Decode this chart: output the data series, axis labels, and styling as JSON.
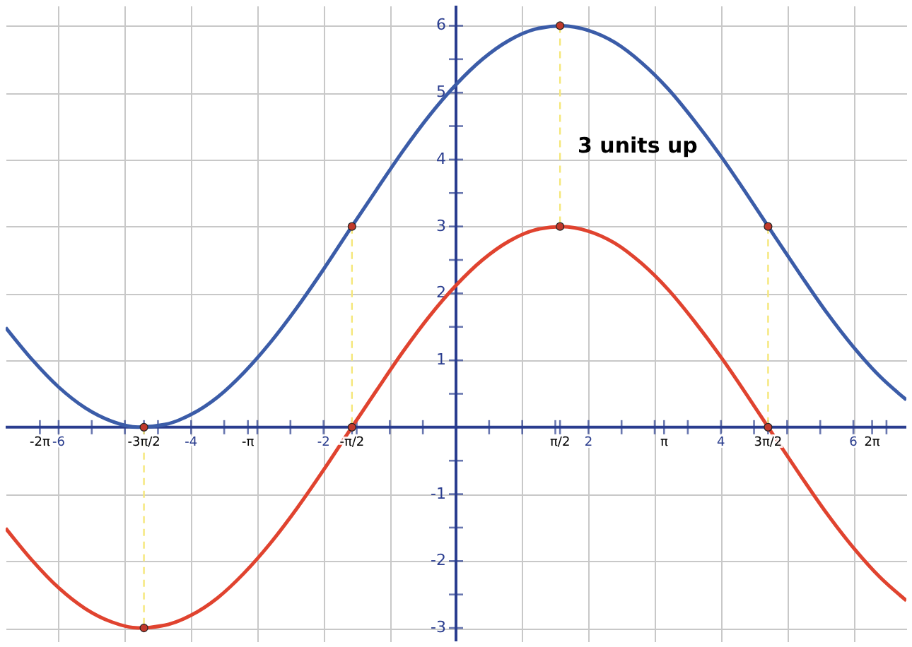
{
  "chart_data": {
    "type": "line",
    "annotations": [
      "3 units up"
    ],
    "xlim": [
      -6.8,
      6.8
    ],
    "ylim": [
      -3.2,
      6.3
    ],
    "xticks": [
      {
        "value": -6.283,
        "label": "-2π"
      },
      -6,
      {
        "value": -5.5,
        "label": null
      },
      {
        "value": -5,
        "label": null
      },
      {
        "value": -4.712,
        "label": "-3π/2"
      },
      {
        "value": -4.5,
        "label": null
      },
      -4,
      {
        "value": -3.5,
        "label": null
      },
      {
        "value": -3.142,
        "label": "-π"
      },
      {
        "value": -3,
        "label": null
      },
      {
        "value": -2.5,
        "label": null
      },
      -2,
      {
        "value": -1.571,
        "label": "-π/2"
      },
      {
        "value": -1.5,
        "label": null
      },
      {
        "value": -1,
        "label": null
      },
      {
        "value": -0.5,
        "label": null
      },
      {
        "value": 0.5,
        "label": null
      },
      {
        "value": 1,
        "label": null
      },
      {
        "value": 1.5,
        "label": null
      },
      {
        "value": 1.571,
        "label": "π/2"
      },
      2,
      {
        "value": 2.5,
        "label": null
      },
      {
        "value": 3,
        "label": null
      },
      {
        "value": 3.142,
        "label": "π"
      },
      {
        "value": 3.5,
        "label": null
      },
      4,
      {
        "value": 4.5,
        "label": null
      },
      {
        "value": 4.712,
        "label": "3π/2"
      },
      {
        "value": 5,
        "label": null
      },
      {
        "value": 5.5,
        "label": null
      },
      6,
      {
        "value": 6.283,
        "label": "2π"
      },
      {
        "value": 6.5,
        "label": null
      }
    ],
    "yticks": [
      -3,
      {
        "value": -2.5,
        "label": null
      },
      -2,
      {
        "value": -1.5,
        "label": null
      },
      -1,
      {
        "value": -0.5,
        "label": null
      },
      {
        "value": 0.5,
        "label": null
      },
      1,
      {
        "value": 1.5,
        "label": null
      },
      2,
      {
        "value": 2.5,
        "label": null
      },
      3,
      {
        "value": 3.5,
        "label": null
      },
      4,
      {
        "value": 4.5,
        "label": null
      },
      5,
      {
        "value": 5.5,
        "label": null
      },
      6
    ],
    "grid": true,
    "series": [
      {
        "type": "line",
        "color": "#3b5ca8",
        "x": [
          -6.8,
          -6.4,
          -6.0,
          -5.6,
          -5.2,
          -4.8,
          -4.4,
          -4.0,
          -3.6,
          -3.2,
          -2.8,
          -2.4,
          -2.0,
          -1.6,
          -1.2,
          -0.8,
          -0.4,
          0,
          0.4,
          0.8,
          1.2,
          1.6,
          2.0,
          2.4,
          2.8,
          3.2,
          3.6,
          4.0,
          4.4,
          4.8,
          5.2,
          5.6,
          6.0,
          6.4,
          6.8
        ],
        "values": [
          1.49,
          1.01,
          0.6,
          0.29,
          0.09,
          0.0,
          0.04,
          0.19,
          0.45,
          0.82,
          1.27,
          1.79,
          2.36,
          2.96,
          3.55,
          4.13,
          4.66,
          5.12,
          5.5,
          5.78,
          5.95,
          6.0,
          5.93,
          5.75,
          5.45,
          5.06,
          4.58,
          4.05,
          3.47,
          2.87,
          2.28,
          1.71,
          1.2,
          0.76,
          0.41
        ]
      },
      {
        "type": "line",
        "color": "#e0432f",
        "x": [
          -6.8,
          -6.4,
          -6.0,
          -5.6,
          -5.2,
          -4.8,
          -4.4,
          -4.0,
          -3.6,
          -3.2,
          -2.8,
          -2.4,
          -2.0,
          -1.6,
          -1.2,
          -0.8,
          -0.4,
          0,
          0.4,
          0.8,
          1.2,
          1.6,
          2.0,
          2.4,
          2.8,
          3.2,
          3.6,
          4.0,
          4.4,
          4.8,
          5.2,
          5.6,
          6.0,
          6.4,
          6.8
        ],
        "values": [
          -1.51,
          -1.99,
          -2.4,
          -2.71,
          -2.91,
          -3.0,
          -2.96,
          -2.81,
          -2.55,
          -2.18,
          -1.73,
          -1.21,
          -0.64,
          -0.04,
          0.55,
          1.13,
          1.66,
          2.12,
          2.5,
          2.78,
          2.95,
          3.0,
          2.93,
          2.75,
          2.45,
          2.06,
          1.58,
          1.05,
          0.47,
          -0.13,
          -0.72,
          -1.29,
          -1.8,
          -2.24,
          -2.59
        ]
      },
      {
        "type": "line",
        "line_style": "dashed",
        "color": "#f5e77a",
        "x": [
          -4.712,
          -4.712
        ],
        "values": [
          0,
          -3
        ]
      },
      {
        "type": "line",
        "line_style": "dashed",
        "color": "#f5e77a",
        "x": [
          -1.571,
          -1.571
        ],
        "values": [
          3,
          0
        ]
      },
      {
        "type": "line",
        "line_style": "dashed",
        "color": "#f5e77a",
        "x": [
          1.571,
          1.571
        ],
        "values": [
          6,
          3
        ]
      },
      {
        "type": "line",
        "line_style": "dashed",
        "color": "#f5e77a",
        "x": [
          4.712,
          4.712
        ],
        "values": [
          3,
          0
        ]
      },
      {
        "type": "scatter",
        "marker": "circle",
        "color": "#c0392b",
        "x": [
          -4.712,
          -1.571,
          1.571,
          4.712
        ],
        "values": [
          0,
          3,
          6,
          3
        ]
      },
      {
        "type": "scatter",
        "marker": "circle",
        "color": "#c0392b",
        "x": [
          -4.712,
          -1.571,
          1.571,
          4.712
        ],
        "values": [
          -3,
          0,
          3,
          0
        ]
      }
    ]
  }
}
